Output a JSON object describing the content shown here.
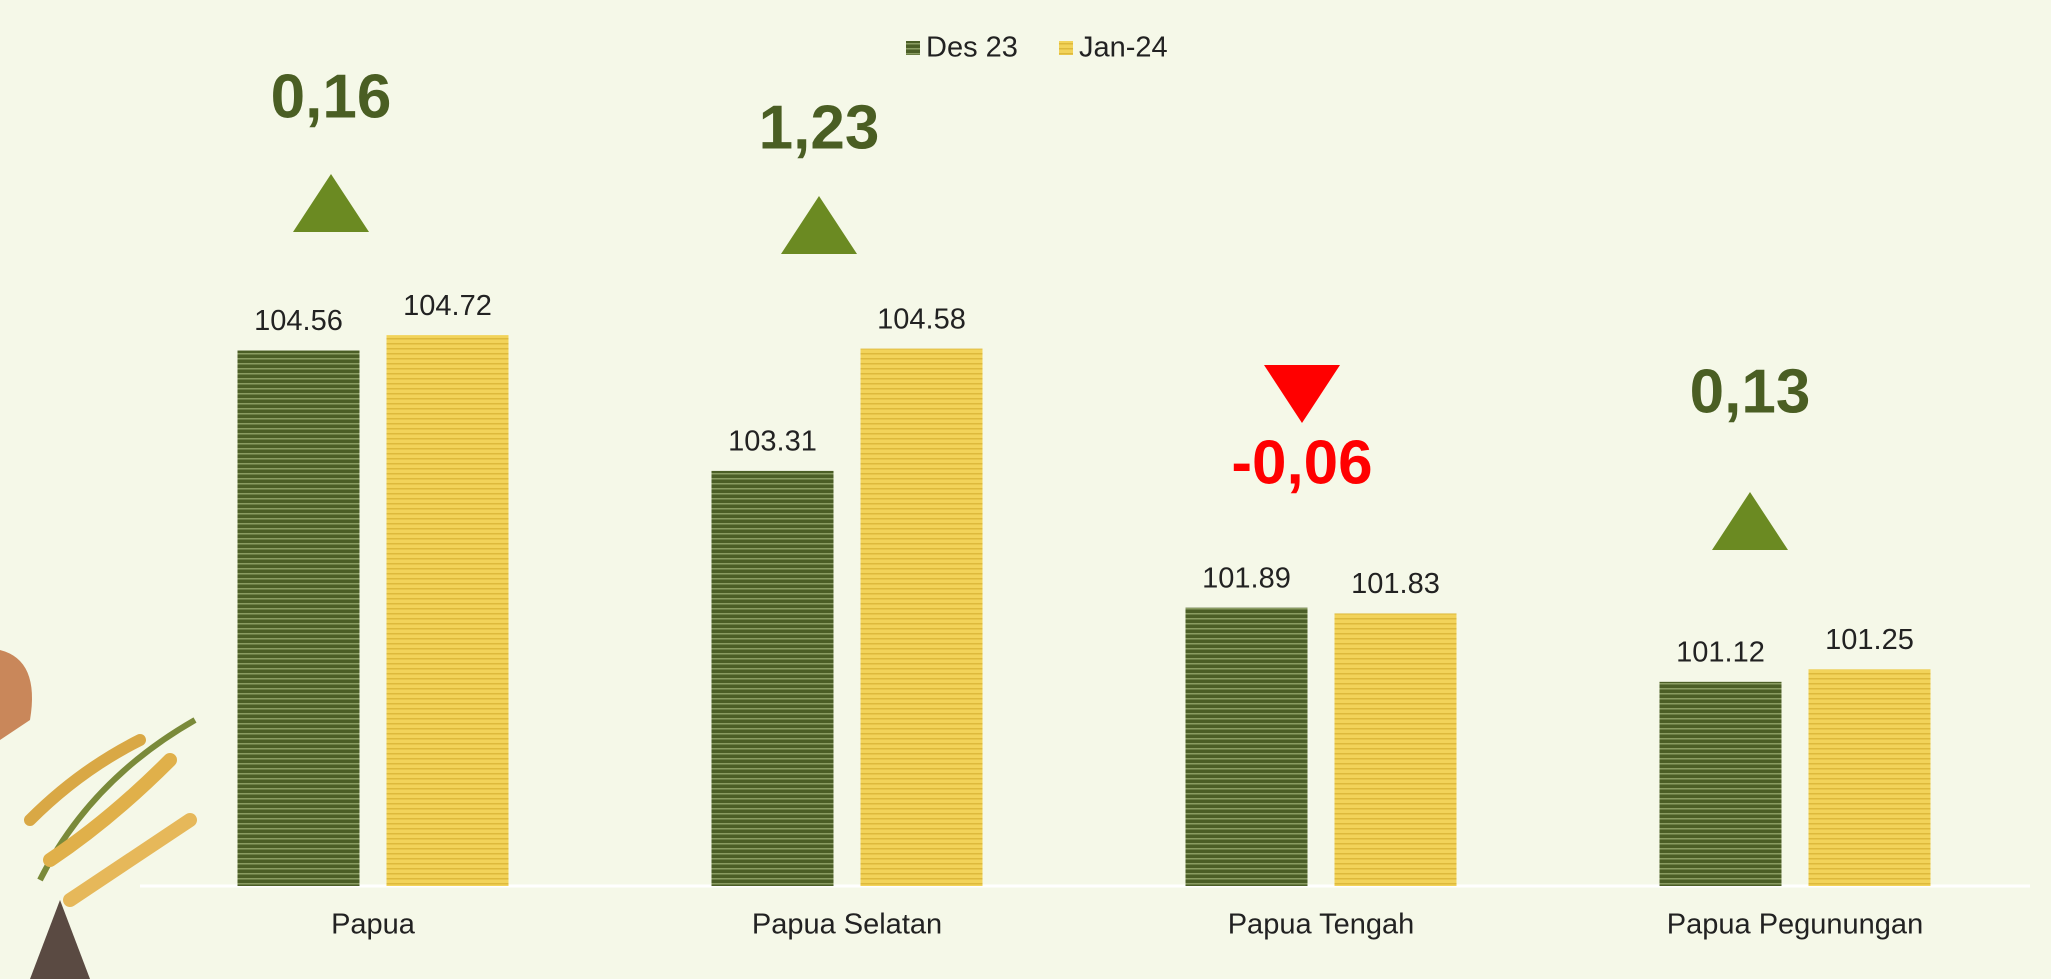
{
  "chart_data": {
    "type": "bar",
    "categories": [
      "Papua",
      "Papua Selatan",
      "Papua Tengah",
      "Papua Pegunungan"
    ],
    "series": [
      {
        "name": "Des 23",
        "color": "#4b5e26",
        "values": [
          104.56,
          103.31,
          101.89,
          101.12
        ]
      },
      {
        "name": "Jan-24",
        "color": "#f2d35a",
        "values": [
          104.72,
          104.58,
          101.83,
          101.25
        ]
      }
    ],
    "changes": [
      0.16,
      1.23,
      -0.06,
      0.13
    ],
    "change_labels": [
      "0,16",
      "1,23",
      "-0,06",
      "0,13"
    ],
    "up_color": "#6b8a22",
    "up_text_color": "#4a5e23",
    "down_color": "#ff0000",
    "ylim": [
      99,
      105.5
    ],
    "legend": "top"
  }
}
